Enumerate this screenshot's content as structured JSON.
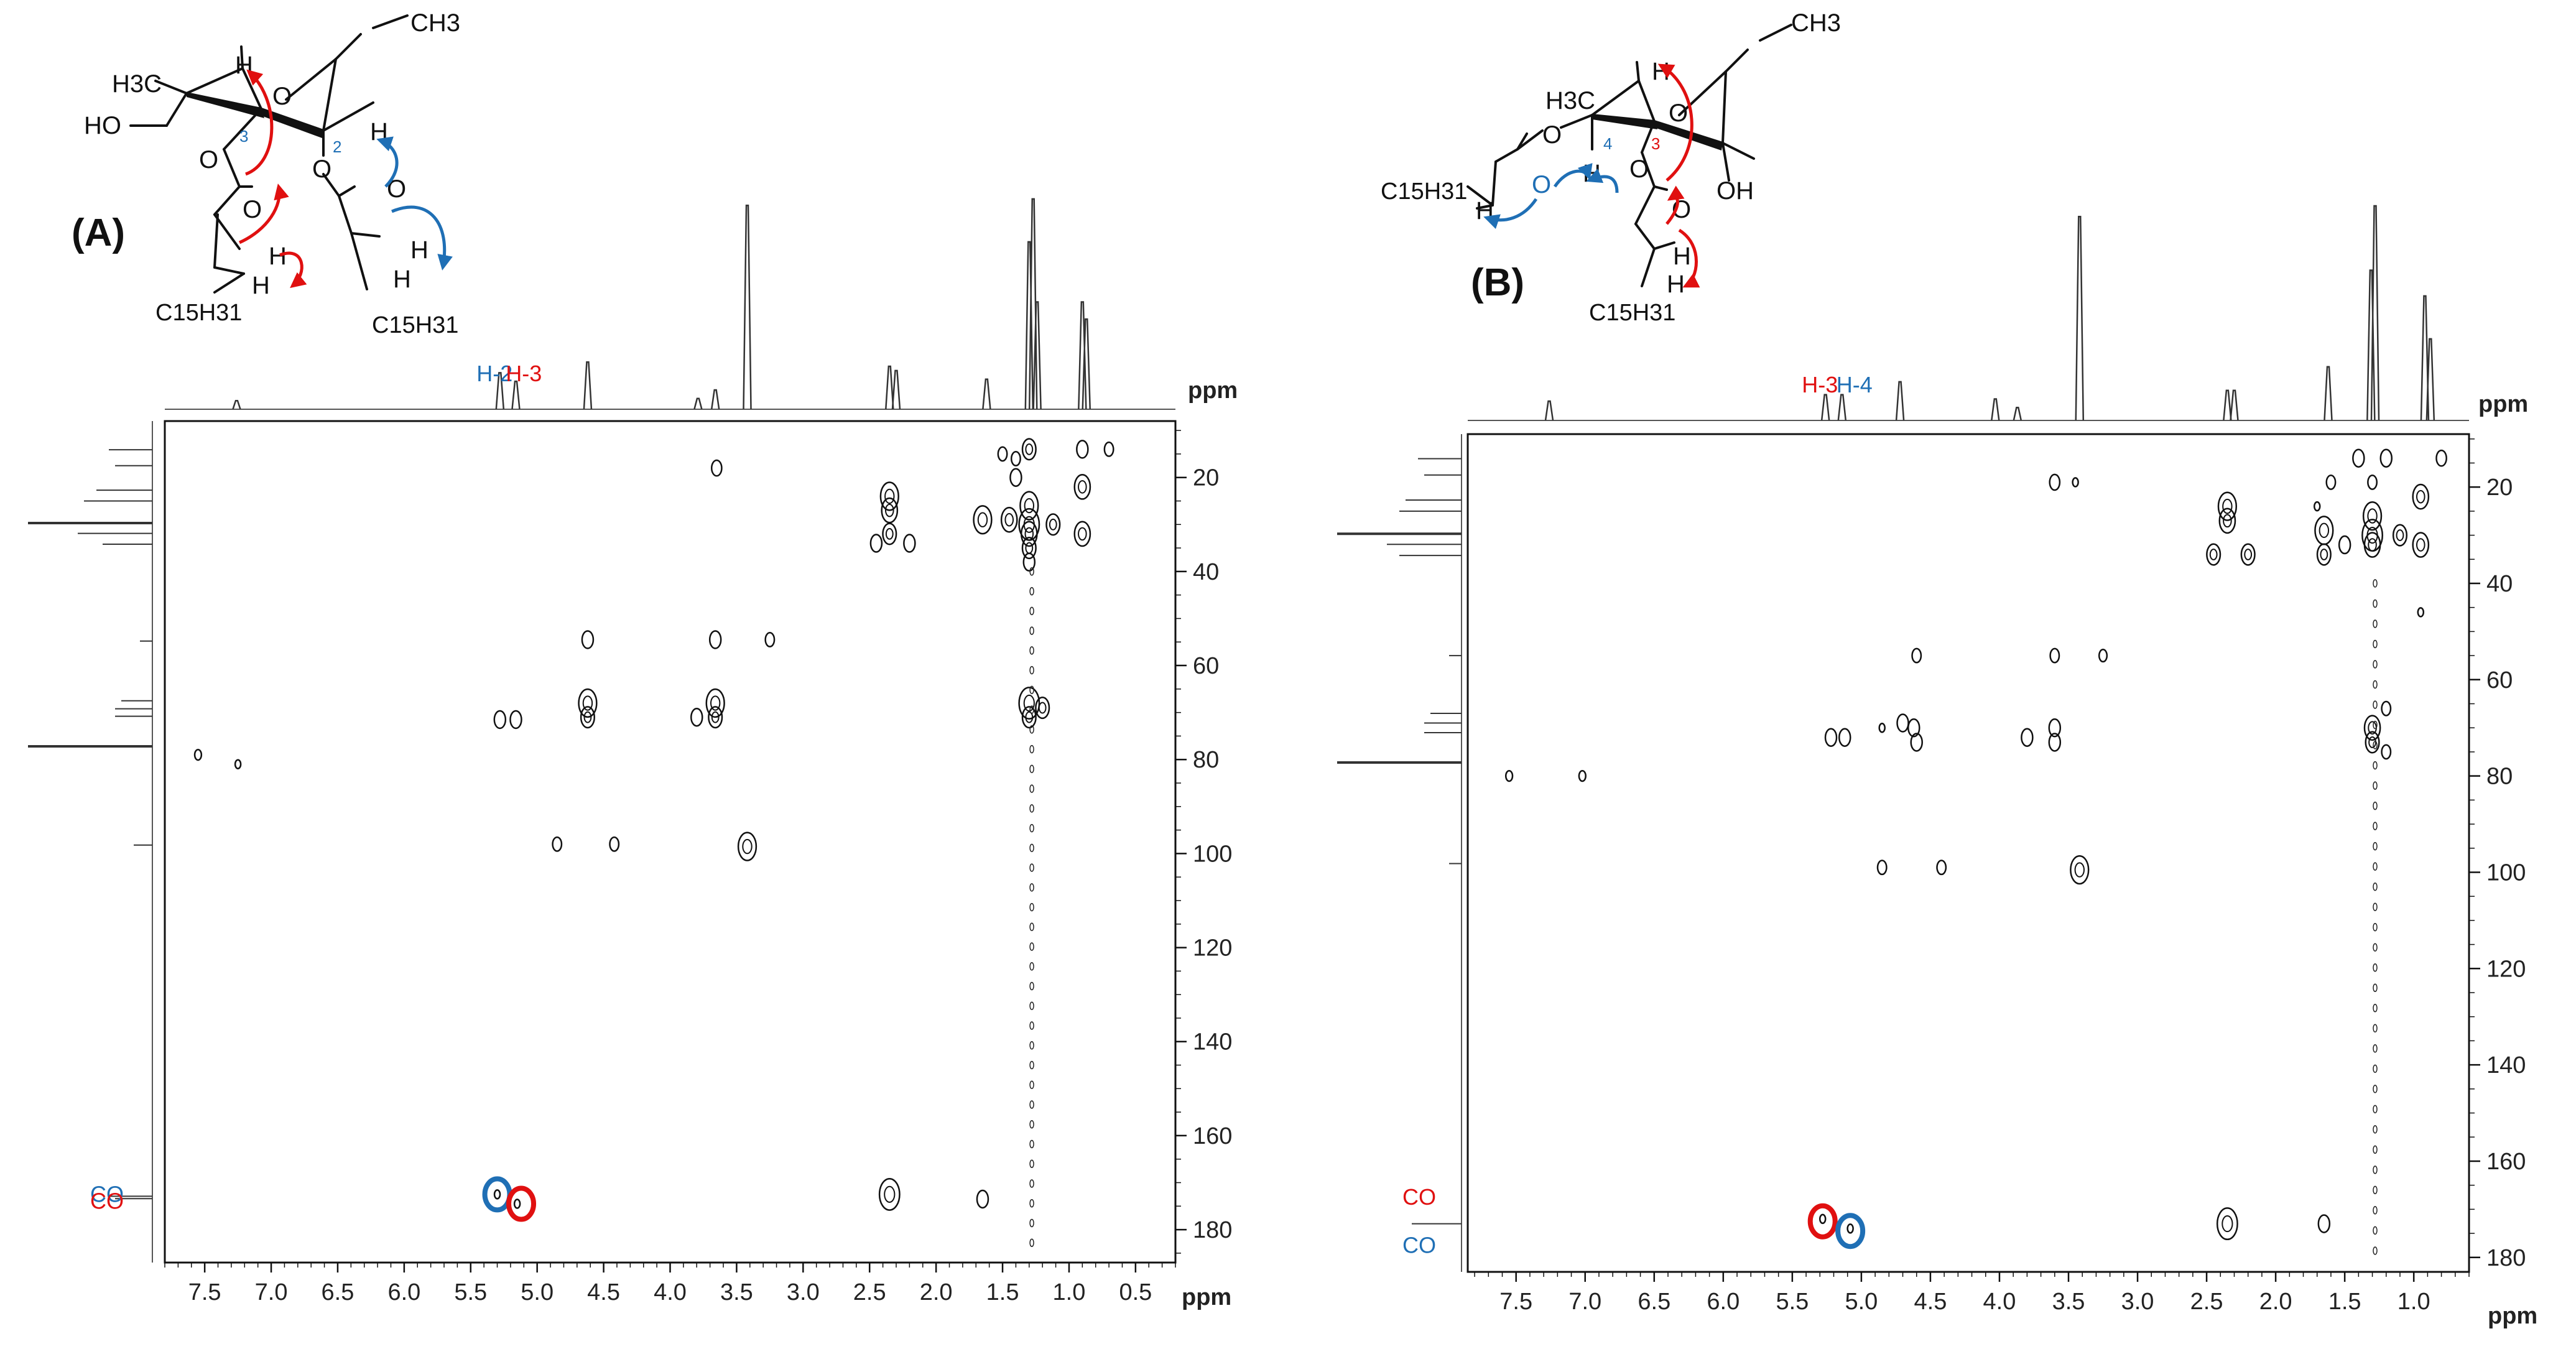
{
  "chart_data": [
    {
      "type": "heatmap",
      "panel_label": "(A)",
      "x_unit": "ppm",
      "y_unit": "ppm",
      "xlim": [
        7.8,
        0.2
      ],
      "ylim": [
        8,
        187
      ],
      "x_ticks": [
        7.5,
        7.0,
        6.5,
        6.0,
        5.5,
        5.0,
        4.5,
        4.0,
        3.5,
        3.0,
        2.5,
        2.0,
        1.5,
        1.0,
        0.5
      ],
      "x_tick_labels": [
        "7.5",
        "7.0",
        "6.5",
        "6.0",
        "5.5",
        "5.0",
        "4.5",
        "4.0",
        "3.5",
        "3.0",
        "2.5",
        "2.0",
        "1.5",
        "1.0",
        "0.5"
      ],
      "y_ticks": [
        20,
        40,
        60,
        80,
        100,
        120,
        140,
        160,
        180
      ],
      "y_tick_labels": [
        "20",
        "40",
        "60",
        "80",
        "100",
        "120",
        "140",
        "160",
        "180"
      ],
      "proton_labels": [
        {
          "text": "H-2",
          "x": 5.32,
          "color": "#1f6fb5"
        },
        {
          "text": "H-3",
          "x": 5.1,
          "color": "#e01010"
        }
      ],
      "carbon_labels": [
        {
          "text": "CO",
          "y": 172.5,
          "color": "#1f6fb5"
        },
        {
          "text": "CO",
          "y": 174.0,
          "color": "#e01010"
        }
      ],
      "highlight_circles": [
        {
          "x": 5.3,
          "y": 172.5,
          "color": "#1f6fb5"
        },
        {
          "x": 5.12,
          "y": 174.5,
          "color": "#e01010"
        }
      ],
      "h_peaks": [
        [
          7.26,
          0.04
        ],
        [
          5.28,
          0.17
        ],
        [
          5.16,
          0.13
        ],
        [
          4.62,
          0.22
        ],
        [
          3.79,
          0.05
        ],
        [
          3.66,
          0.09
        ],
        [
          3.42,
          0.95
        ],
        [
          2.35,
          0.2
        ],
        [
          2.3,
          0.18
        ],
        [
          1.62,
          0.14
        ],
        [
          1.3,
          0.78
        ],
        [
          1.27,
          0.98
        ],
        [
          1.24,
          0.5
        ],
        [
          0.9,
          0.5
        ],
        [
          0.87,
          0.42
        ]
      ],
      "c_peaks": [
        [
          14.1,
          0.35
        ],
        [
          17.5,
          0.3
        ],
        [
          22.7,
          0.45
        ],
        [
          25.0,
          0.55
        ],
        [
          29.7,
          1.0
        ],
        [
          31.9,
          0.6
        ],
        [
          34.2,
          0.4
        ],
        [
          54.8,
          0.1
        ],
        [
          67.5,
          0.25
        ],
        [
          69.2,
          0.3
        ],
        [
          70.8,
          0.3
        ],
        [
          77.2,
          1.0
        ],
        [
          98.2,
          0.15
        ],
        [
          172.9,
          0.35
        ],
        [
          173.4,
          0.3
        ]
      ],
      "cross_peaks": [
        [
          3.65,
          18,
          0.9
        ],
        [
          1.3,
          14,
          1.2
        ],
        [
          0.9,
          14,
          1.0
        ],
        [
          0.7,
          14,
          0.8
        ],
        [
          1.5,
          15,
          0.8
        ],
        [
          1.4,
          16,
          0.8
        ],
        [
          0.9,
          22,
          1.4
        ],
        [
          0.9,
          32,
          1.4
        ],
        [
          2.35,
          24,
          1.6
        ],
        [
          2.35,
          27,
          1.4
        ],
        [
          2.35,
          32,
          1.2
        ],
        [
          2.45,
          34,
          1.0
        ],
        [
          2.2,
          34,
          1.0
        ],
        [
          1.65,
          29,
          1.6
        ],
        [
          1.3,
          26,
          1.6
        ],
        [
          1.3,
          30,
          1.8
        ],
        [
          1.3,
          32,
          1.4
        ],
        [
          1.3,
          35,
          1.2
        ],
        [
          1.3,
          38,
          1.0
        ],
        [
          1.4,
          20,
          1.0
        ],
        [
          1.45,
          29,
          1.4
        ],
        [
          1.12,
          30,
          1.2
        ],
        [
          4.62,
          54.5,
          1.0
        ],
        [
          3.66,
          54.5,
          1.0
        ],
        [
          3.25,
          54.5,
          0.8
        ],
        [
          5.28,
          71.5,
          1.0
        ],
        [
          5.16,
          71.5,
          1.0
        ],
        [
          4.62,
          68,
          1.6
        ],
        [
          4.62,
          71,
          1.2
        ],
        [
          3.8,
          71,
          1.0
        ],
        [
          3.66,
          68,
          1.6
        ],
        [
          3.66,
          71,
          1.2
        ],
        [
          1.3,
          68,
          1.8
        ],
        [
          1.3,
          71,
          1.2
        ],
        [
          1.2,
          69,
          1.2
        ],
        [
          7.55,
          79,
          0.6
        ],
        [
          7.25,
          81,
          0.5
        ],
        [
          4.85,
          98,
          0.8
        ],
        [
          4.42,
          98,
          0.8
        ],
        [
          3.42,
          98.5,
          1.6
        ],
        [
          2.35,
          172.5,
          1.8
        ],
        [
          1.65,
          173.5,
          1.0
        ],
        [
          5.3,
          172.5,
          0.5
        ],
        [
          5.15,
          174.5,
          0.5
        ]
      ]
    },
    {
      "type": "heatmap",
      "panel_label": "(B)",
      "x_unit": "ppm",
      "y_unit": "ppm",
      "xlim": [
        7.85,
        0.6
      ],
      "ylim": [
        9,
        183
      ],
      "x_ticks": [
        7.5,
        7.0,
        6.5,
        6.0,
        5.5,
        5.0,
        4.5,
        4.0,
        3.5,
        3.0,
        2.5,
        2.0,
        1.5,
        1.0
      ],
      "x_tick_labels": [
        "7.5",
        "7.0",
        "6.5",
        "6.0",
        "5.5",
        "5.0",
        "4.5",
        "4.0",
        "3.5",
        "3.0",
        "2.5",
        "2.0",
        "1.5",
        "1.0"
      ],
      "y_ticks": [
        20,
        40,
        60,
        80,
        100,
        120,
        140,
        160,
        180
      ],
      "y_tick_labels": [
        "20",
        "40",
        "60",
        "80",
        "100",
        "120",
        "140",
        "160",
        "180"
      ],
      "proton_labels": [
        {
          "text": "H-3",
          "x": 5.3,
          "color": "#e01010"
        },
        {
          "text": "H-4",
          "x": 5.05,
          "color": "#1f6fb5"
        }
      ],
      "carbon_labels": [
        {
          "text": "CO",
          "y": 167.5,
          "color": "#e01010"
        },
        {
          "text": "CO",
          "y": 177.5,
          "color": "#1f6fb5"
        }
      ],
      "highlight_circles": [
        {
          "x": 5.28,
          "y": 172.5,
          "color": "#e01010"
        },
        {
          "x": 5.08,
          "y": 174.5,
          "color": "#1f6fb5"
        }
      ],
      "h_peaks": [
        [
          7.26,
          0.09
        ],
        [
          5.26,
          0.12
        ],
        [
          5.14,
          0.12
        ],
        [
          4.72,
          0.18
        ],
        [
          4.03,
          0.1
        ],
        [
          3.87,
          0.06
        ],
        [
          3.42,
          0.95
        ],
        [
          2.35,
          0.14
        ],
        [
          2.3,
          0.14
        ],
        [
          1.62,
          0.25
        ],
        [
          1.31,
          0.7
        ],
        [
          1.28,
          1.0
        ],
        [
          0.92,
          0.58
        ],
        [
          0.88,
          0.38
        ]
      ],
      "c_peaks": [
        [
          14.1,
          0.35
        ],
        [
          17.5,
          0.3
        ],
        [
          22.7,
          0.45
        ],
        [
          25.0,
          0.5
        ],
        [
          29.7,
          1.0
        ],
        [
          31.9,
          0.6
        ],
        [
          34.2,
          0.5
        ],
        [
          55.0,
          0.1
        ],
        [
          67.0,
          0.25
        ],
        [
          69.0,
          0.3
        ],
        [
          71.0,
          0.3
        ],
        [
          77.2,
          1.0
        ],
        [
          98.2,
          0.1
        ],
        [
          173.0,
          0.4
        ]
      ],
      "cross_peaks": [
        [
          3.6,
          19,
          0.9
        ],
        [
          3.45,
          19,
          0.5
        ],
        [
          1.4,
          14,
          1.0
        ],
        [
          1.2,
          14,
          1.0
        ],
        [
          0.8,
          14,
          0.9
        ],
        [
          1.6,
          19,
          0.8
        ],
        [
          1.3,
          19,
          0.8
        ],
        [
          0.95,
          22,
          1.4
        ],
        [
          0.95,
          32,
          1.4
        ],
        [
          0.95,
          46,
          0.5
        ],
        [
          2.35,
          24,
          1.6
        ],
        [
          2.35,
          27,
          1.4
        ],
        [
          2.45,
          34,
          1.2
        ],
        [
          2.2,
          34,
          1.2
        ],
        [
          1.65,
          29,
          1.6
        ],
        [
          1.65,
          34,
          1.2
        ],
        [
          1.3,
          26,
          1.6
        ],
        [
          1.3,
          30,
          1.8
        ],
        [
          1.3,
          32,
          1.4
        ],
        [
          1.5,
          32,
          1.0
        ],
        [
          1.1,
          30,
          1.2
        ],
        [
          1.7,
          24,
          0.5
        ],
        [
          4.6,
          55,
          0.8
        ],
        [
          3.6,
          55,
          0.8
        ],
        [
          3.25,
          55,
          0.7
        ],
        [
          5.22,
          72,
          1.0
        ],
        [
          5.12,
          72,
          1.0
        ],
        [
          4.85,
          70,
          0.5
        ],
        [
          4.7,
          69,
          1.0
        ],
        [
          4.62,
          70,
          1.0
        ],
        [
          4.6,
          73,
          1.0
        ],
        [
          3.8,
          72,
          1.0
        ],
        [
          3.6,
          70,
          1.0
        ],
        [
          3.6,
          73,
          1.0
        ],
        [
          1.3,
          70,
          1.4
        ],
        [
          1.3,
          73,
          1.2
        ],
        [
          1.2,
          66,
          0.8
        ],
        [
          1.2,
          75,
          0.8
        ],
        [
          7.55,
          80,
          0.6
        ],
        [
          7.02,
          80,
          0.6
        ],
        [
          4.85,
          99,
          0.8
        ],
        [
          4.42,
          99,
          0.8
        ],
        [
          3.42,
          99.5,
          1.6
        ],
        [
          2.35,
          173,
          1.8
        ],
        [
          1.65,
          173,
          1.0
        ],
        [
          5.28,
          172,
          0.5
        ],
        [
          5.08,
          174,
          0.5
        ]
      ]
    }
  ],
  "structures": [
    {
      "label": "(A)",
      "atoms": {
        "ome_ch3": "CH3",
        "ring_o": "O",
        "h_anomeric_top": "H",
        "h3c": "H3C",
        "ho": "HO",
        "c3_num": "3",
        "c2_num": "2",
        "h_c2": "H",
        "o_c3": "O",
        "o_c2": "O",
        "co_o_left": "O",
        "co_o_right": "O",
        "h_ch2_left_a": "H",
        "h_ch2_left_b": "H",
        "h_ch2_right_a": "H",
        "h_ch2_right_b": "H",
        "c15_left": "C15H31",
        "c15_right": "C15H31"
      }
    },
    {
      "label": "(B)",
      "atoms": {
        "ome_ch3": "CH3",
        "ring_o": "O",
        "h_top": "H",
        "h3c": "H3C",
        "o_c4": "O",
        "c4_num": "4",
        "c3_num": "3",
        "h_c4": "H",
        "co_o_left": "O",
        "o_c3": "O",
        "oh": "OH",
        "co_o_right": "O",
        "h_ch2_left_a": "H",
        "h_ch2_right_a": "H",
        "h_ch2_right_b": "H",
        "c15_left": "C15H31",
        "c15_bottom": "C15H31"
      }
    }
  ],
  "colors": {
    "red": "#e01010",
    "blue": "#1f6fb5",
    "ink": "#111111"
  }
}
